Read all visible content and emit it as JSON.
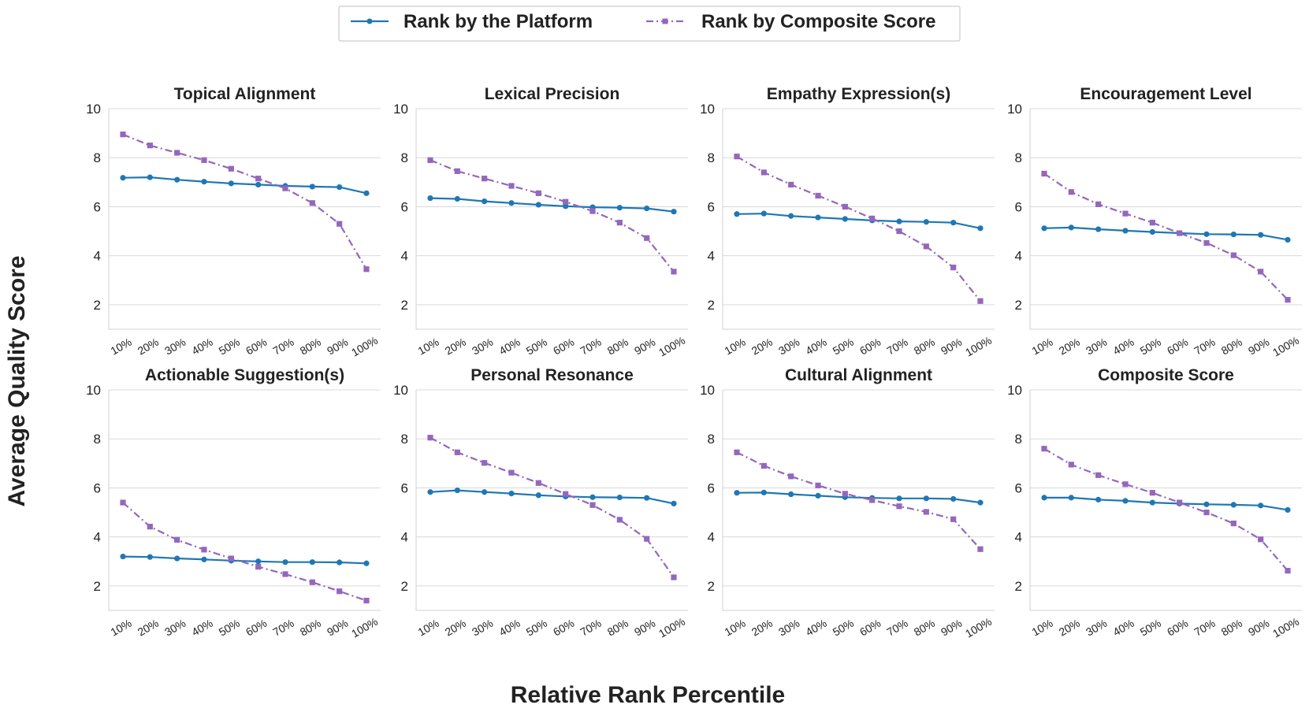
{
  "legend": {
    "platform_label": "Rank by the Platform",
    "composite_label": "Rank by Composite Score"
  },
  "xlabel": "Relative Rank Percentile",
  "ylabel": "Average Quality Score",
  "colors": {
    "platform": "#1f77b4",
    "composite": "#9467bd"
  },
  "chart_data": [
    {
      "type": "line",
      "title": "Topical Alignment",
      "categories": [
        "10%",
        "20%",
        "30%",
        "40%",
        "50%",
        "60%",
        "70%",
        "80%",
        "90%",
        "100%"
      ],
      "ylim": [
        1,
        10
      ],
      "yticks": [
        2,
        4,
        6,
        8,
        10
      ],
      "series": [
        {
          "name": "Rank by the Platform",
          "values": [
            7.18,
            7.2,
            7.1,
            7.02,
            6.95,
            6.9,
            6.85,
            6.82,
            6.8,
            6.55
          ]
        },
        {
          "name": "Rank by Composite Score",
          "values": [
            8.95,
            8.5,
            8.2,
            7.9,
            7.55,
            7.15,
            6.75,
            6.15,
            5.3,
            3.45
          ]
        }
      ]
    },
    {
      "type": "line",
      "title": "Lexical Precision",
      "categories": [
        "10%",
        "20%",
        "30%",
        "40%",
        "50%",
        "60%",
        "70%",
        "80%",
        "90%",
        "100%"
      ],
      "ylim": [
        1,
        10
      ],
      "yticks": [
        2,
        4,
        6,
        8,
        10
      ],
      "series": [
        {
          "name": "Rank by the Platform",
          "values": [
            6.35,
            6.32,
            6.22,
            6.15,
            6.08,
            6.02,
            5.98,
            5.96,
            5.93,
            5.8
          ]
        },
        {
          "name": "Rank by Composite Score",
          "values": [
            7.9,
            7.45,
            7.15,
            6.85,
            6.55,
            6.2,
            5.82,
            5.35,
            4.72,
            3.35
          ]
        }
      ]
    },
    {
      "type": "line",
      "title": "Empathy Expression(s)",
      "categories": [
        "10%",
        "20%",
        "30%",
        "40%",
        "50%",
        "60%",
        "70%",
        "80%",
        "90%",
        "100%"
      ],
      "ylim": [
        1,
        10
      ],
      "yticks": [
        2,
        4,
        6,
        8,
        10
      ],
      "series": [
        {
          "name": "Rank by the Platform",
          "values": [
            5.7,
            5.72,
            5.62,
            5.56,
            5.5,
            5.44,
            5.4,
            5.38,
            5.35,
            5.12
          ]
        },
        {
          "name": "Rank by Composite Score",
          "values": [
            8.05,
            7.4,
            6.9,
            6.45,
            6.0,
            5.52,
            5.0,
            4.38,
            3.52,
            2.15
          ]
        }
      ]
    },
    {
      "type": "line",
      "title": "Encouragement Level",
      "categories": [
        "10%",
        "20%",
        "30%",
        "40%",
        "50%",
        "60%",
        "70%",
        "80%",
        "90%",
        "100%"
      ],
      "ylim": [
        1,
        10
      ],
      "yticks": [
        2,
        4,
        6,
        8,
        10
      ],
      "series": [
        {
          "name": "Rank by the Platform",
          "values": [
            5.12,
            5.15,
            5.08,
            5.02,
            4.97,
            4.92,
            4.88,
            4.87,
            4.85,
            4.65
          ]
        },
        {
          "name": "Rank by Composite Score",
          "values": [
            7.35,
            6.6,
            6.1,
            5.72,
            5.35,
            4.92,
            4.52,
            4.02,
            3.35,
            2.2
          ]
        }
      ]
    },
    {
      "type": "line",
      "title": "Actionable Suggestion(s)",
      "categories": [
        "10%",
        "20%",
        "30%",
        "40%",
        "50%",
        "60%",
        "70%",
        "80%",
        "90%",
        "100%"
      ],
      "ylim": [
        1,
        10
      ],
      "yticks": [
        2,
        4,
        6,
        8,
        10
      ],
      "series": [
        {
          "name": "Rank by the Platform",
          "values": [
            3.2,
            3.18,
            3.12,
            3.08,
            3.03,
            3.0,
            2.97,
            2.97,
            2.96,
            2.92
          ]
        },
        {
          "name": "Rank by Composite Score",
          "values": [
            5.4,
            4.42,
            3.88,
            3.48,
            3.12,
            2.78,
            2.48,
            2.15,
            1.78,
            1.4
          ]
        }
      ]
    },
    {
      "type": "line",
      "title": "Personal Resonance",
      "categories": [
        "10%",
        "20%",
        "30%",
        "40%",
        "50%",
        "60%",
        "70%",
        "80%",
        "90%",
        "100%"
      ],
      "ylim": [
        1,
        10
      ],
      "yticks": [
        2,
        4,
        6,
        8,
        10
      ],
      "series": [
        {
          "name": "Rank by the Platform",
          "values": [
            5.83,
            5.9,
            5.83,
            5.77,
            5.7,
            5.65,
            5.62,
            5.61,
            5.59,
            5.36
          ]
        },
        {
          "name": "Rank by Composite Score",
          "values": [
            8.05,
            7.45,
            7.02,
            6.62,
            6.2,
            5.75,
            5.3,
            4.7,
            3.92,
            2.35
          ]
        }
      ]
    },
    {
      "type": "line",
      "title": "Cultural Alignment",
      "categories": [
        "10%",
        "20%",
        "30%",
        "40%",
        "50%",
        "60%",
        "70%",
        "80%",
        "90%",
        "100%"
      ],
      "ylim": [
        1,
        10
      ],
      "yticks": [
        2,
        4,
        6,
        8,
        10
      ],
      "series": [
        {
          "name": "Rank by the Platform",
          "values": [
            5.8,
            5.81,
            5.74,
            5.68,
            5.62,
            5.59,
            5.57,
            5.57,
            5.55,
            5.4
          ]
        },
        {
          "name": "Rank by Composite Score",
          "values": [
            7.45,
            6.9,
            6.47,
            6.1,
            5.76,
            5.5,
            5.25,
            5.02,
            4.72,
            3.5
          ]
        }
      ]
    },
    {
      "type": "line",
      "title": "Composite Score",
      "categories": [
        "10%",
        "20%",
        "30%",
        "40%",
        "50%",
        "60%",
        "70%",
        "80%",
        "90%",
        "100%"
      ],
      "ylim": [
        1,
        10
      ],
      "yticks": [
        2,
        4,
        6,
        8,
        10
      ],
      "series": [
        {
          "name": "Rank by the Platform",
          "values": [
            5.6,
            5.6,
            5.52,
            5.47,
            5.4,
            5.36,
            5.33,
            5.31,
            5.28,
            5.1
          ]
        },
        {
          "name": "Rank by Composite Score",
          "values": [
            7.6,
            6.95,
            6.52,
            6.15,
            5.8,
            5.4,
            5.0,
            4.55,
            3.9,
            2.62
          ]
        }
      ]
    }
  ]
}
